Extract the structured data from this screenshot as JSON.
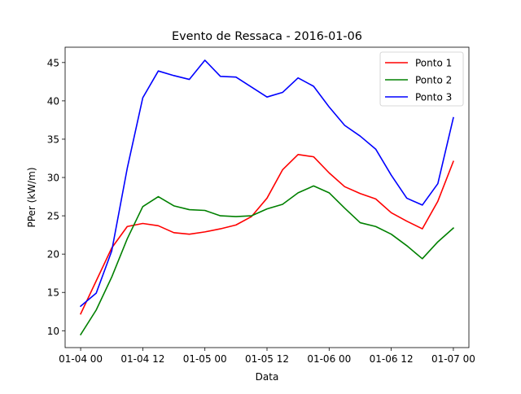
{
  "chart_data": {
    "type": "line",
    "title": "Evento de Ressaca - 2016-01-06",
    "xlabel": "Data",
    "ylabel": "PPer (kW/m)",
    "x": [
      "2016-01-04 00:00",
      "2016-01-04 03:00",
      "2016-01-04 06:00",
      "2016-01-04 09:00",
      "2016-01-04 12:00",
      "2016-01-04 15:00",
      "2016-01-04 18:00",
      "2016-01-04 21:00",
      "2016-01-05 00:00",
      "2016-01-05 03:00",
      "2016-01-05 06:00",
      "2016-01-05 09:00",
      "2016-01-05 12:00",
      "2016-01-05 15:00",
      "2016-01-05 18:00",
      "2016-01-05 21:00",
      "2016-01-06 00:00",
      "2016-01-06 03:00",
      "2016-01-06 06:00",
      "2016-01-06 09:00",
      "2016-01-06 12:00",
      "2016-01-06 15:00",
      "2016-01-06 18:00",
      "2016-01-06 21:00",
      "2016-01-07 00:00"
    ],
    "xlim": [
      "2016-01-03 21:00",
      "2016-01-07 03:00"
    ],
    "xticks": [
      "2016-01-04 00:00",
      "2016-01-04 12:00",
      "2016-01-05 00:00",
      "2016-01-05 12:00",
      "2016-01-06 00:00",
      "2016-01-06 12:00",
      "2016-01-07 00:00"
    ],
    "xtick_labels": [
      "01-04 00",
      "01-04 12",
      "01-05 00",
      "01-05 12",
      "01-06 00",
      "01-06 12",
      "01-07 00"
    ],
    "ylim": [
      7.8,
      47.0
    ],
    "yticks": [
      10,
      15,
      20,
      25,
      30,
      35,
      40,
      45
    ],
    "ytick_labels": [
      "10",
      "15",
      "20",
      "25",
      "30",
      "35",
      "40",
      "45"
    ],
    "grid": false,
    "legend_position": "top-right",
    "series": [
      {
        "name": "Ponto 1",
        "color": "#ff0000",
        "values": [
          12.2,
          16.5,
          20.8,
          23.6,
          24.0,
          23.7,
          22.8,
          22.6,
          22.9,
          23.3,
          23.8,
          24.9,
          27.3,
          31.0,
          33.0,
          32.7,
          30.6,
          28.8,
          27.9,
          27.2,
          25.4,
          24.3,
          23.3,
          26.9,
          32.1
        ]
      },
      {
        "name": "Ponto 2",
        "color": "#008000",
        "values": [
          9.5,
          12.7,
          17.0,
          22.0,
          26.2,
          27.5,
          26.3,
          25.8,
          25.7,
          25.0,
          24.9,
          25.0,
          25.9,
          26.5,
          28.0,
          28.9,
          28.0,
          26.0,
          24.1,
          23.6,
          22.6,
          21.1,
          19.4,
          21.6,
          23.4
        ]
      },
      {
        "name": "Ponto 3",
        "color": "#0000ff",
        "values": [
          13.2,
          14.9,
          20.4,
          31.2,
          40.4,
          43.9,
          43.3,
          42.8,
          45.3,
          43.2,
          43.1,
          41.8,
          40.5,
          41.1,
          43.0,
          41.9,
          39.2,
          36.8,
          35.4,
          33.7,
          30.3,
          27.3,
          26.4,
          29.2,
          37.8
        ]
      }
    ]
  }
}
